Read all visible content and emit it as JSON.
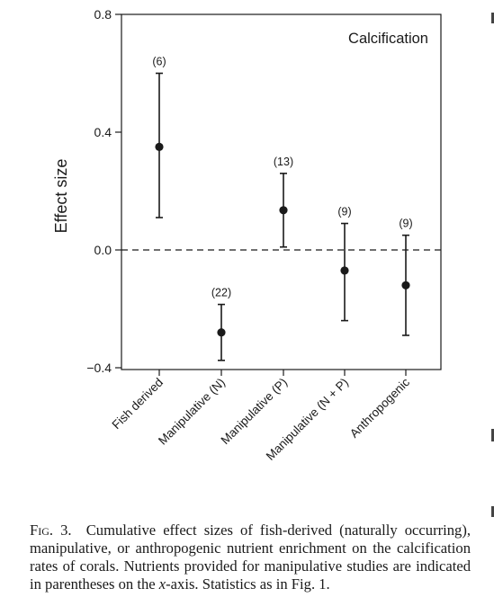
{
  "chart_data": {
    "type": "scatter",
    "panel_label": "Calcification",
    "ylabel": "Effect size",
    "xlabel": "",
    "ylim": [
      -0.4,
      0.8
    ],
    "yticks": [
      "0.8",
      "0.4",
      "0.0",
      "−0.4"
    ],
    "ytick_values": [
      0.8,
      0.4,
      0.0,
      -0.4
    ],
    "reference_line": 0.0,
    "categories": [
      "Fish derived",
      "Manipulative (N)",
      "Manipulative (P)",
      "Manipulative (N + P)",
      "Anthropogenic"
    ],
    "series": [
      {
        "values": [
          0.35,
          -0.28,
          0.135,
          -0.07,
          -0.12
        ],
        "lower": [
          0.11,
          -0.375,
          0.01,
          -0.24,
          -0.29
        ],
        "upper": [
          0.6,
          -0.185,
          0.26,
          0.09,
          0.05
        ],
        "n_labels": [
          "(6)",
          "(22)",
          "(13)",
          "(9)",
          "(9)"
        ]
      }
    ],
    "grid": false,
    "legend": "none"
  },
  "caption": {
    "fig_label": "Fig. 3.",
    "text_before_axis": "Cumulative effect sizes of fish-derived (naturally occurring), manipulative, or anthropogenic nutrient enrichment on the calcification rates of corals. Nutrients provided for manipulative studies are indicated in parentheses on the ",
    "axis_word": "x",
    "text_after_axis": "-axis. Statistics as in Fig. 1."
  },
  "colors": {
    "ink": "#1a1a1a",
    "background": "#ffffff"
  }
}
